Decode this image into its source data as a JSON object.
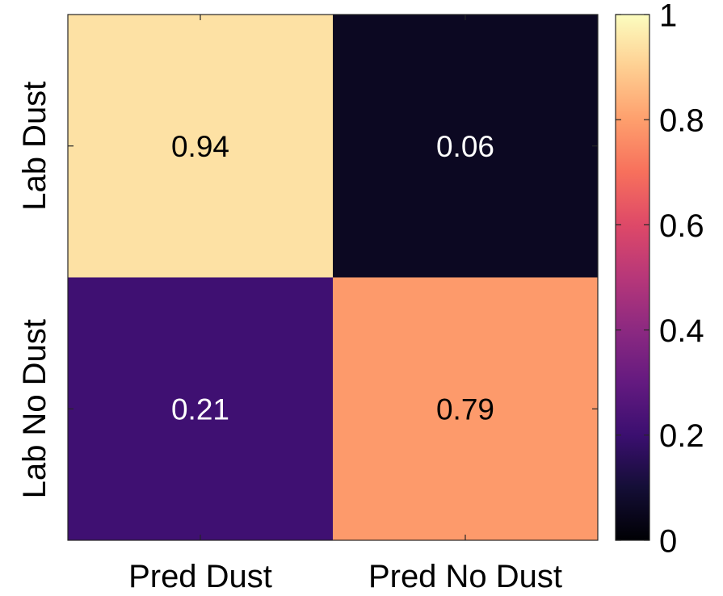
{
  "chart_data": {
    "type": "heatmap",
    "title": "",
    "xlabel": "",
    "ylabel": "",
    "x_categories": [
      "Pred Dust",
      "Pred No Dust"
    ],
    "y_categories": [
      "Lab Dust",
      "Lab No Dust"
    ],
    "values": [
      [
        0.94,
        0.06
      ],
      [
        0.21,
        0.79
      ]
    ],
    "value_labels": [
      [
        "0.94",
        "0.06"
      ],
      [
        "0.21",
        "0.79"
      ]
    ],
    "colorbar": {
      "range": [
        0,
        1
      ],
      "ticks": [
        0,
        0.2,
        0.4,
        0.6,
        0.8,
        1
      ],
      "tick_labels": [
        "0",
        "0.2",
        "0.4",
        "0.6",
        "0.8",
        "1"
      ],
      "colormap": "magma"
    },
    "grid": false
  }
}
